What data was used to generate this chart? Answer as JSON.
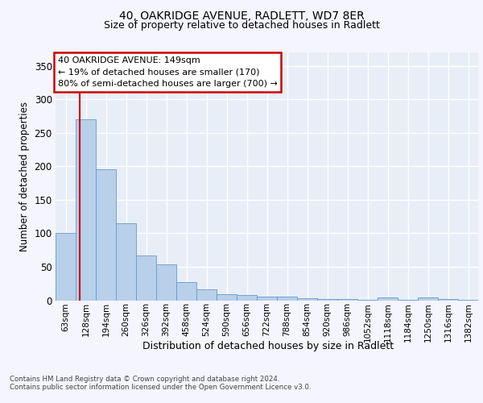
{
  "title_line1": "40, OAKRIDGE AVENUE, RADLETT, WD7 8ER",
  "title_line2": "Size of property relative to detached houses in Radlett",
  "xlabel": "Distribution of detached houses by size in Radlett",
  "ylabel": "Number of detached properties",
  "categories": [
    "63sqm",
    "128sqm",
    "194sqm",
    "260sqm",
    "326sqm",
    "392sqm",
    "458sqm",
    "524sqm",
    "590sqm",
    "656sqm",
    "722sqm",
    "788sqm",
    "854sqm",
    "920sqm",
    "986sqm",
    "1052sqm",
    "1118sqm",
    "1184sqm",
    "1250sqm",
    "1316sqm",
    "1382sqm"
  ],
  "values": [
    100,
    270,
    195,
    115,
    67,
    54,
    27,
    16,
    9,
    8,
    5,
    5,
    3,
    2,
    2,
    1,
    4,
    1,
    4,
    2,
    1
  ],
  "bar_color": "#b8d0ea",
  "bar_edge_color": "#6699cc",
  "red_line_index": 1.18,
  "annotation_text": "40 OAKRIDGE AVENUE: 149sqm\n← 19% of detached houses are smaller (170)\n80% of semi-detached houses are larger (700) →",
  "annotation_box_color": "#ffffff",
  "annotation_box_edge": "#cc0000",
  "footer_line1": "Contains HM Land Registry data © Crown copyright and database right 2024.",
  "footer_line2": "Contains public sector information licensed under the Open Government Licence v3.0.",
  "background_color": "#e8eef8",
  "grid_color": "#ffffff",
  "ylim": [
    0,
    370
  ],
  "yticks": [
    0,
    50,
    100,
    150,
    200,
    250,
    300,
    350
  ],
  "fig_bg": "#f5f5ff"
}
